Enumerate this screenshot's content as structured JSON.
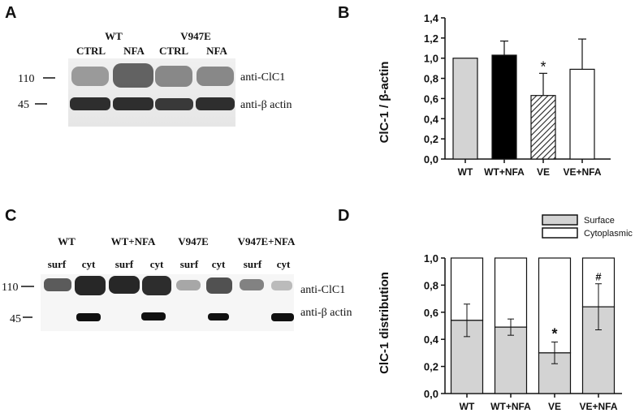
{
  "panels": {
    "A": {
      "letter": "A",
      "group_labels": [
        "WT",
        "V947E"
      ],
      "lane_labels": [
        "CTRL",
        "NFA",
        "CTRL",
        "NFA"
      ],
      "markers": [
        "110",
        "45"
      ],
      "blot_labels": [
        "anti-ClC1",
        "anti-β actin"
      ]
    },
    "B": {
      "letter": "B"
    },
    "C": {
      "letter": "C",
      "group_labels": [
        "WT",
        "WT+NFA",
        "V947E",
        "V947E+NFA"
      ],
      "lane_labels": [
        "surf",
        "cyt",
        "surf",
        "cyt",
        "surf",
        "cyt",
        "surf",
        "cyt"
      ],
      "markers": [
        "110",
        "45"
      ],
      "blot_labels": [
        "anti-ClC1",
        "anti-β actin"
      ]
    },
    "D": {
      "letter": "D"
    }
  },
  "chart_data": [
    {
      "type": "bar",
      "categories": [
        "WT",
        "WT+NFA",
        "VE",
        "VE+NFA"
      ],
      "values": [
        1.0,
        1.03,
        0.63,
        0.89
      ],
      "errors": [
        0,
        0.14,
        0.22,
        0.3
      ],
      "annotations": [
        "",
        "",
        "*",
        ""
      ],
      "bar_fills": [
        "#d3d3d3",
        "#000000",
        "hatched",
        "#ffffff"
      ],
      "title": "",
      "xlabel": "",
      "ylabel": "ClC-1 / β-actin",
      "ylim": [
        0,
        1.4
      ],
      "yticks": [
        "0,0",
        "0,2",
        "0,4",
        "0,6",
        "0,8",
        "1,0",
        "1,2",
        "1,4"
      ],
      "grid": false
    },
    {
      "type": "bar",
      "stacked": true,
      "categories": [
        "WT",
        "WT+NFA",
        "VE",
        "VE+NFA"
      ],
      "series": [
        {
          "name": "Surface",
          "values": [
            0.54,
            0.49,
            0.3,
            0.64
          ],
          "errors": [
            0.12,
            0.06,
            0.08,
            0.17
          ],
          "color": "#d3d3d3"
        },
        {
          "name": "Cytoplasmic",
          "values": [
            0.46,
            0.51,
            0.7,
            0.36
          ],
          "color": "#ffffff"
        }
      ],
      "annotations": [
        "",
        "",
        "*",
        "#"
      ],
      "title": "",
      "xlabel": "",
      "ylabel": "ClC-1 distribution",
      "ylim": [
        0,
        1.0
      ],
      "yticks": [
        "0,0",
        "0,2",
        "0,4",
        "0,6",
        "0,8",
        "1,0"
      ],
      "legend_position": "top-right",
      "grid": false
    }
  ]
}
